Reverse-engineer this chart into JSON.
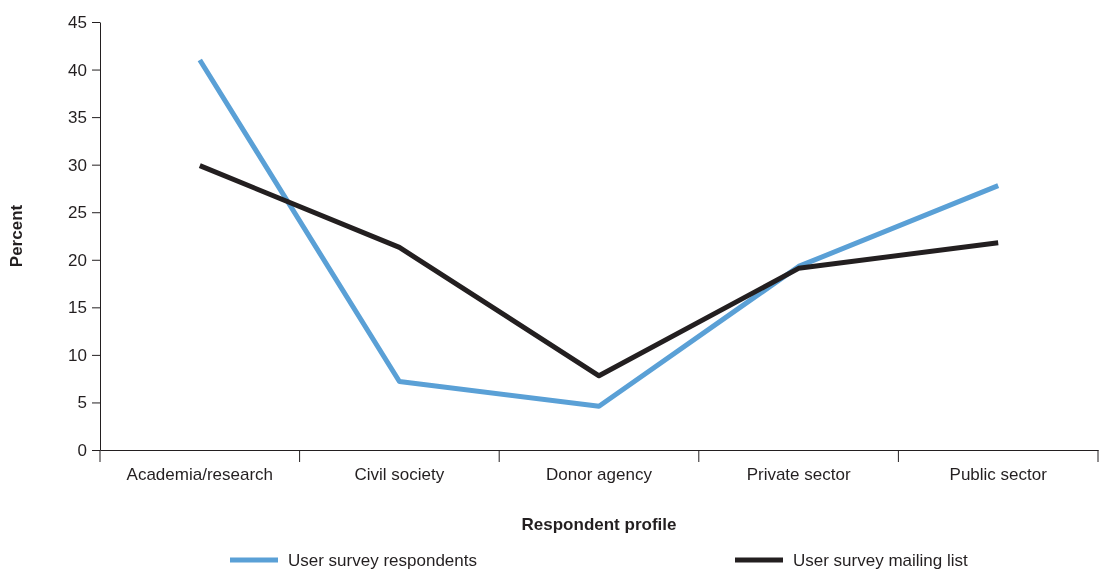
{
  "chart_data": {
    "type": "line",
    "xlabel": "Respondent profile",
    "ylabel": "Percent",
    "categories": [
      "Academia/research",
      "Civil society",
      "Donor agency",
      "Private sector",
      "Public sector"
    ],
    "series": [
      {
        "name": "User survey respondents",
        "color": "#5aa0d6",
        "values": [
          41,
          7.2,
          4.6,
          19.3,
          27.8
        ]
      },
      {
        "name": "User survey mailing list",
        "color": "#231f20",
        "values": [
          29.9,
          21.3,
          7.8,
          19.1,
          21.8
        ]
      }
    ],
    "ylim": [
      0,
      45
    ],
    "yticks": [
      0,
      5,
      10,
      15,
      20,
      25,
      30,
      35,
      40,
      45
    ],
    "grid": false,
    "legend": "bottom",
    "marker": "none",
    "line_style": "solid"
  }
}
